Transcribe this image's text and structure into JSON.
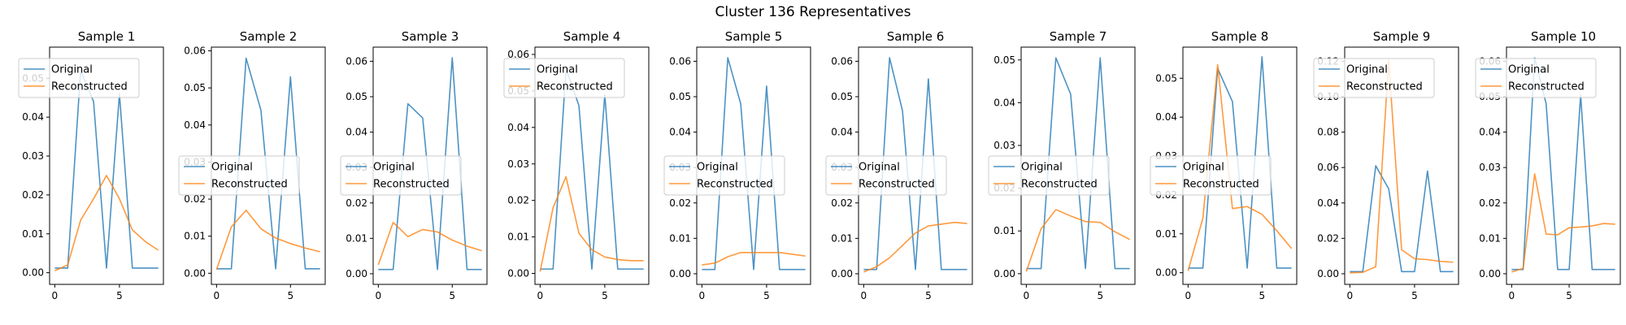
{
  "figure_title": "Cluster 136 Representatives",
  "legend_labels": {
    "original": "Original",
    "reconstructed": "Reconstructed"
  },
  "colors": {
    "original": "#1f77b4",
    "reconstructed": "#ff7f0e",
    "axes": "#000000",
    "legend_border": "#cccccc"
  },
  "chart_data": [
    {
      "type": "line",
      "title": "Sample 1",
      "ylim": [
        -0.003,
        0.058
      ],
      "xlim": [
        -0.4,
        8.4
      ],
      "xticks": [
        {
          "v": 0,
          "label": "0"
        },
        {
          "v": 5,
          "label": "5"
        }
      ],
      "yticks": [
        {
          "v": 0.0,
          "label": "0.00"
        },
        {
          "v": 0.01,
          "label": "0.01"
        },
        {
          "v": 0.02,
          "label": "0.02"
        },
        {
          "v": 0.03,
          "label": "0.03"
        },
        {
          "v": 0.04,
          "label": "0.04"
        },
        {
          "v": 0.05,
          "label": "0.05"
        }
      ],
      "legend_position": "upper-left",
      "series": [
        {
          "name": "Original",
          "x": [
            0,
            1,
            2,
            3,
            4,
            5,
            6,
            7,
            8
          ],
          "values": [
            0.0012,
            0.0012,
            0.052,
            0.044,
            0.0012,
            0.046,
            0.0012,
            0.0012,
            0.0012
          ]
        },
        {
          "name": "Reconstructed",
          "x": [
            0,
            1,
            2,
            3,
            4,
            5,
            6,
            7,
            8
          ],
          "values": [
            0.0005,
            0.002,
            0.0135,
            0.019,
            0.025,
            0.019,
            0.011,
            0.008,
            0.0058
          ]
        }
      ]
    },
    {
      "type": "line",
      "title": "Sample 2",
      "ylim": [
        -0.003,
        0.061
      ],
      "xlim": [
        -0.35,
        7.35
      ],
      "xticks": [
        {
          "v": 0,
          "label": "0"
        },
        {
          "v": 5,
          "label": "5"
        }
      ],
      "yticks": [
        {
          "v": 0.0,
          "label": "0.00"
        },
        {
          "v": 0.01,
          "label": "0.01"
        },
        {
          "v": 0.02,
          "label": "0.02"
        },
        {
          "v": 0.03,
          "label": "0.03"
        },
        {
          "v": 0.04,
          "label": "0.04"
        },
        {
          "v": 0.05,
          "label": "0.05"
        },
        {
          "v": 0.06,
          "label": "0.06"
        }
      ],
      "legend_position": "center",
      "series": [
        {
          "name": "Original",
          "x": [
            0,
            1,
            2,
            3,
            4,
            5,
            6,
            7
          ],
          "values": [
            0.0012,
            0.0012,
            0.058,
            0.044,
            0.0012,
            0.053,
            0.0012,
            0.0012
          ]
        },
        {
          "name": "Reconstructed",
          "x": [
            0,
            1,
            2,
            3,
            4,
            5,
            6,
            7
          ],
          "values": [
            0.001,
            0.0125,
            0.017,
            0.012,
            0.0095,
            0.008,
            0.0068,
            0.0058
          ]
        }
      ]
    },
    {
      "type": "line",
      "title": "Sample 3",
      "ylim": [
        -0.003,
        0.064
      ],
      "xlim": [
        -0.35,
        7.35
      ],
      "xticks": [
        {
          "v": 0,
          "label": "0"
        },
        {
          "v": 5,
          "label": "5"
        }
      ],
      "yticks": [
        {
          "v": 0.0,
          "label": "0.00"
        },
        {
          "v": 0.01,
          "label": "0.01"
        },
        {
          "v": 0.02,
          "label": "0.02"
        },
        {
          "v": 0.03,
          "label": "0.03"
        },
        {
          "v": 0.04,
          "label": "0.04"
        },
        {
          "v": 0.05,
          "label": "0.05"
        },
        {
          "v": 0.06,
          "label": "0.06"
        }
      ],
      "legend_position": "center",
      "series": [
        {
          "name": "Original",
          "x": [
            0,
            1,
            2,
            3,
            4,
            5,
            6,
            7
          ],
          "values": [
            0.0012,
            0.0012,
            0.048,
            0.044,
            0.0012,
            0.061,
            0.0012,
            0.0012
          ]
        },
        {
          "name": "Reconstructed",
          "x": [
            0,
            1,
            2,
            3,
            4,
            5,
            6,
            7
          ],
          "values": [
            0.0025,
            0.0145,
            0.0105,
            0.0125,
            0.0118,
            0.0095,
            0.0078,
            0.0065
          ]
        }
      ]
    },
    {
      "type": "line",
      "title": "Sample 4",
      "ylim": [
        -0.003,
        0.062
      ],
      "xlim": [
        -0.4,
        8.4
      ],
      "xticks": [
        {
          "v": 0,
          "label": "0"
        },
        {
          "v": 5,
          "label": "5"
        }
      ],
      "yticks": [
        {
          "v": 0.0,
          "label": "0.00"
        },
        {
          "v": 0.01,
          "label": "0.01"
        },
        {
          "v": 0.02,
          "label": "0.02"
        },
        {
          "v": 0.03,
          "label": "0.03"
        },
        {
          "v": 0.04,
          "label": "0.04"
        },
        {
          "v": 0.05,
          "label": "0.05"
        },
        {
          "v": 0.06,
          "label": "0.06"
        }
      ],
      "legend_position": "upper-left",
      "series": [
        {
          "name": "Original",
          "x": [
            0,
            1,
            2,
            3,
            4,
            5,
            6,
            7,
            8
          ],
          "values": [
            0.0012,
            0.0012,
            0.056,
            0.046,
            0.0012,
            0.049,
            0.0012,
            0.0012,
            0.0012
          ]
        },
        {
          "name": "Reconstructed",
          "x": [
            0,
            1,
            2,
            3,
            4,
            5,
            6,
            7,
            8
          ],
          "values": [
            0.0005,
            0.018,
            0.0265,
            0.011,
            0.0065,
            0.0045,
            0.0038,
            0.0035,
            0.0035
          ]
        }
      ]
    },
    {
      "type": "line",
      "title": "Sample 5",
      "ylim": [
        -0.003,
        0.064
      ],
      "xlim": [
        -0.4,
        8.4
      ],
      "xticks": [
        {
          "v": 0,
          "label": "0"
        },
        {
          "v": 5,
          "label": "5"
        }
      ],
      "yticks": [
        {
          "v": 0.0,
          "label": "0.00"
        },
        {
          "v": 0.01,
          "label": "0.01"
        },
        {
          "v": 0.02,
          "label": "0.02"
        },
        {
          "v": 0.03,
          "label": "0.03"
        },
        {
          "v": 0.04,
          "label": "0.04"
        },
        {
          "v": 0.05,
          "label": "0.05"
        },
        {
          "v": 0.06,
          "label": "0.06"
        }
      ],
      "legend_position": "center",
      "series": [
        {
          "name": "Original",
          "x": [
            0,
            1,
            2,
            3,
            4,
            5,
            6,
            7,
            8
          ],
          "values": [
            0.0012,
            0.0012,
            0.061,
            0.048,
            0.0012,
            0.053,
            0.0012,
            0.0012,
            0.0012
          ]
        },
        {
          "name": "Reconstructed",
          "x": [
            0,
            1,
            2,
            3,
            4,
            5,
            6,
            7,
            8
          ],
          "values": [
            0.0025,
            0.003,
            0.0048,
            0.006,
            0.006,
            0.006,
            0.006,
            0.0055,
            0.005
          ]
        }
      ]
    },
    {
      "type": "line",
      "title": "Sample 6",
      "ylim": [
        -0.003,
        0.064
      ],
      "xlim": [
        -0.4,
        8.4
      ],
      "xticks": [
        {
          "v": 0,
          "label": "0"
        },
        {
          "v": 5,
          "label": "5"
        }
      ],
      "yticks": [
        {
          "v": 0.0,
          "label": "0.00"
        },
        {
          "v": 0.01,
          "label": "0.01"
        },
        {
          "v": 0.02,
          "label": "0.02"
        },
        {
          "v": 0.03,
          "label": "0.03"
        },
        {
          "v": 0.04,
          "label": "0.04"
        },
        {
          "v": 0.05,
          "label": "0.05"
        },
        {
          "v": 0.06,
          "label": "0.06"
        }
      ],
      "legend_position": "center",
      "series": [
        {
          "name": "Original",
          "x": [
            0,
            1,
            2,
            3,
            4,
            5,
            6,
            7,
            8
          ],
          "values": [
            0.0012,
            0.0012,
            0.061,
            0.046,
            0.0012,
            0.055,
            0.0012,
            0.0012,
            0.0012
          ]
        },
        {
          "name": "Reconstructed",
          "x": [
            0,
            1,
            2,
            3,
            4,
            5,
            6,
            7,
            8
          ],
          "values": [
            0.0005,
            0.002,
            0.0045,
            0.008,
            0.0115,
            0.0135,
            0.014,
            0.0145,
            0.0142
          ]
        }
      ]
    },
    {
      "type": "line",
      "title": "Sample 7",
      "ylim": [
        -0.0025,
        0.053
      ],
      "xlim": [
        -0.35,
        7.35
      ],
      "xticks": [
        {
          "v": 0,
          "label": "0"
        },
        {
          "v": 5,
          "label": "5"
        }
      ],
      "yticks": [
        {
          "v": 0.0,
          "label": "0.00"
        },
        {
          "v": 0.01,
          "label": "0.01"
        },
        {
          "v": 0.02,
          "label": "0.02"
        },
        {
          "v": 0.03,
          "label": "0.03"
        },
        {
          "v": 0.04,
          "label": "0.04"
        },
        {
          "v": 0.05,
          "label": "0.05"
        }
      ],
      "legend_position": "center",
      "series": [
        {
          "name": "Original",
          "x": [
            0,
            1,
            2,
            3,
            4,
            5,
            6,
            7
          ],
          "values": [
            0.0012,
            0.0012,
            0.0505,
            0.042,
            0.0012,
            0.0505,
            0.0012,
            0.0012
          ]
        },
        {
          "name": "Reconstructed",
          "x": [
            0,
            1,
            2,
            3,
            4,
            5,
            6,
            7
          ],
          "values": [
            0.0005,
            0.0105,
            0.015,
            0.0135,
            0.0122,
            0.012,
            0.0098,
            0.008
          ]
        }
      ]
    },
    {
      "type": "line",
      "title": "Sample 8",
      "ylim": [
        -0.003,
        0.058
      ],
      "xlim": [
        -0.35,
        7.35
      ],
      "xticks": [
        {
          "v": 0,
          "label": "0"
        },
        {
          "v": 5,
          "label": "5"
        }
      ],
      "yticks": [
        {
          "v": 0.0,
          "label": "0.00"
        },
        {
          "v": 0.01,
          "label": "0.01"
        },
        {
          "v": 0.02,
          "label": "0.02"
        },
        {
          "v": 0.03,
          "label": "0.03"
        },
        {
          "v": 0.04,
          "label": "0.04"
        },
        {
          "v": 0.05,
          "label": "0.05"
        }
      ],
      "legend_position": "center",
      "series": [
        {
          "name": "Original",
          "x": [
            0,
            1,
            2,
            3,
            4,
            5,
            6,
            7
          ],
          "values": [
            0.0012,
            0.0012,
            0.0525,
            0.044,
            0.0012,
            0.0555,
            0.0012,
            0.0012
          ]
        },
        {
          "name": "Reconstructed",
          "x": [
            0,
            1,
            2,
            3,
            4,
            5,
            6,
            7
          ],
          "values": [
            0.0005,
            0.014,
            0.0535,
            0.0165,
            0.017,
            0.015,
            0.0108,
            0.0062
          ]
        }
      ]
    },
    {
      "type": "line",
      "title": "Sample 9",
      "ylim": [
        -0.006,
        0.128
      ],
      "xlim": [
        -0.4,
        8.4
      ],
      "xticks": [
        {
          "v": 0,
          "label": "0"
        },
        {
          "v": 5,
          "label": "5"
        }
      ],
      "yticks": [
        {
          "v": 0.0,
          "label": "0.00"
        },
        {
          "v": 0.02,
          "label": "0.02"
        },
        {
          "v": 0.04,
          "label": "0.04"
        },
        {
          "v": 0.06,
          "label": "0.06"
        },
        {
          "v": 0.08,
          "label": "0.08"
        },
        {
          "v": 0.1,
          "label": "0.10"
        },
        {
          "v": 0.12,
          "label": "0.12"
        }
      ],
      "legend_position": "upper-left",
      "series": [
        {
          "name": "Original",
          "x": [
            0,
            1,
            2,
            3,
            4,
            5,
            6,
            7,
            8
          ],
          "values": [
            0.0012,
            0.0012,
            0.061,
            0.048,
            0.0012,
            0.0012,
            0.058,
            0.0012,
            0.0012
          ]
        },
        {
          "name": "Reconstructed",
          "x": [
            0,
            1,
            2,
            3,
            4,
            5,
            6,
            7,
            8
          ],
          "values": [
            0.0005,
            0.0008,
            0.004,
            0.1205,
            0.0135,
            0.0085,
            0.008,
            0.007,
            0.0065
          ]
        }
      ]
    },
    {
      "type": "line",
      "title": "Sample 10",
      "ylim": [
        -0.003,
        0.064
      ],
      "xlim": [
        -0.45,
        9.45
      ],
      "xticks": [
        {
          "v": 0,
          "label": "0"
        },
        {
          "v": 5,
          "label": "5"
        }
      ],
      "yticks": [
        {
          "v": 0.0,
          "label": "0.00"
        },
        {
          "v": 0.01,
          "label": "0.01"
        },
        {
          "v": 0.02,
          "label": "0.02"
        },
        {
          "v": 0.03,
          "label": "0.03"
        },
        {
          "v": 0.04,
          "label": "0.04"
        },
        {
          "v": 0.05,
          "label": "0.05"
        },
        {
          "v": 0.06,
          "label": "0.06"
        }
      ],
      "legend_position": "upper-left",
      "series": [
        {
          "name": "Original",
          "x": [
            0,
            1,
            2,
            3,
            4,
            5,
            6,
            7,
            8,
            9
          ],
          "values": [
            0.0012,
            0.0012,
            0.061,
            0.048,
            0.0012,
            0.0012,
            0.0505,
            0.0012,
            0.0012,
            0.0012
          ]
        },
        {
          "name": "Reconstructed",
          "x": [
            0,
            1,
            2,
            3,
            4,
            5,
            6,
            7,
            8,
            9
          ],
          "values": [
            0.0005,
            0.0015,
            0.0282,
            0.0112,
            0.011,
            0.013,
            0.0132,
            0.0135,
            0.0142,
            0.014
          ]
        }
      ]
    }
  ]
}
